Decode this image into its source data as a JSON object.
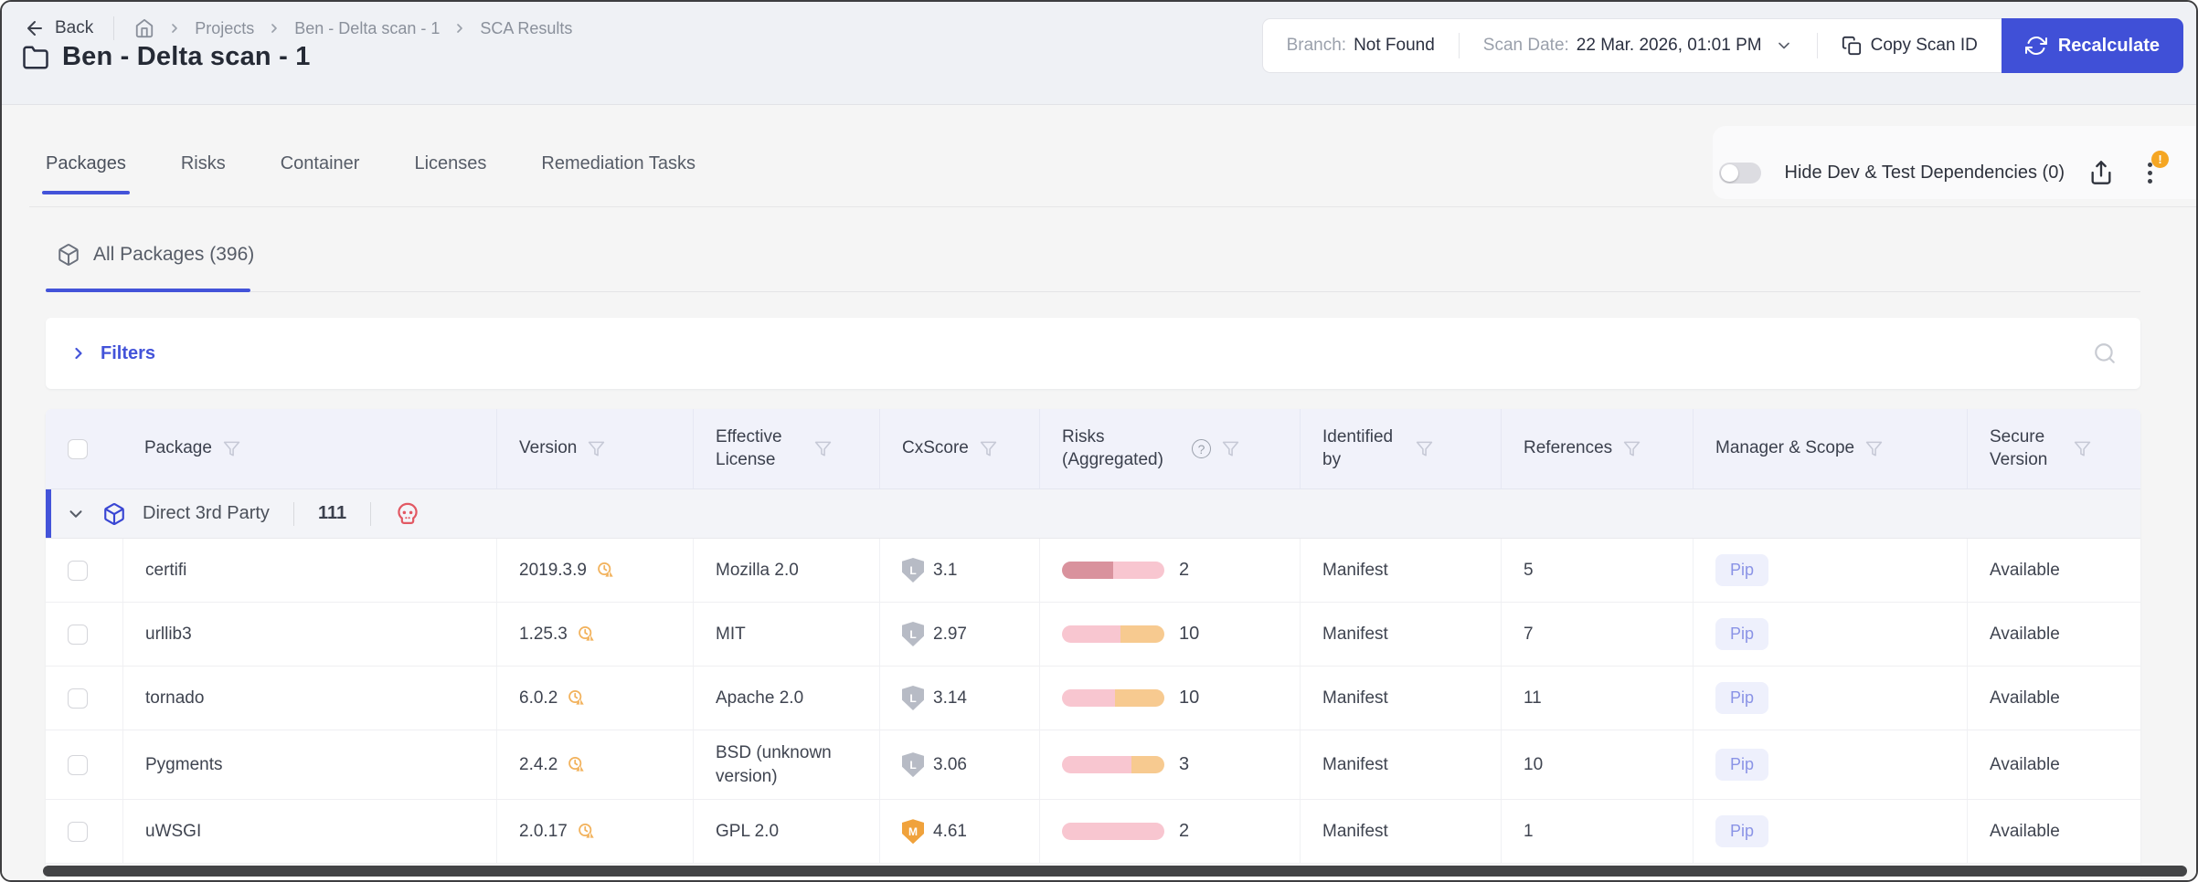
{
  "header": {
    "back_label": "Back",
    "breadcrumb": [
      "Projects",
      "Ben - Delta scan - 1",
      "SCA Results"
    ],
    "title": "Ben - Delta scan - 1",
    "branch_label": "Branch:",
    "branch_value": "Not Found",
    "scan_date_label": "Scan Date:",
    "scan_date_value": "22 Mar. 2026, 01:01 PM",
    "copy_scan_id_label": "Copy Scan ID",
    "recalculate_label": "Recalculate"
  },
  "tabs": [
    {
      "label": "Packages"
    },
    {
      "label": "Risks"
    },
    {
      "label": "Container"
    },
    {
      "label": "Licenses"
    },
    {
      "label": "Remediation Tasks"
    }
  ],
  "toolbar": {
    "hide_dev_label": "Hide Dev & Test Dependencies (0)",
    "menu_badge": "!"
  },
  "subtabs": {
    "all_packages": "All Packages (396)"
  },
  "filters": {
    "label": "Filters"
  },
  "table": {
    "columns": [
      "Package",
      "Version",
      "Effective License",
      "CxScore",
      "Risks (Aggregated)",
      "Identified by",
      "References",
      "Manager & Scope",
      "Secure Version"
    ],
    "group": {
      "name": "Direct 3rd Party",
      "count": "111"
    },
    "score_colors": {
      "low": "#b7bbc5",
      "medium": "#f0a23c"
    },
    "rows": [
      {
        "package": "certifi",
        "version": "2019.3.9",
        "license": "Mozilla 2.0",
        "score": "3.1",
        "score_letter": "L",
        "score_level": "low",
        "risks_count": "2",
        "risk_segments": [
          {
            "color": "#d9929d",
            "pct": 50
          },
          {
            "color": "#f8c6d0",
            "pct": 50
          }
        ],
        "identified_by": "Manifest",
        "references": "5",
        "manager": "Pip",
        "secure": "Available"
      },
      {
        "package": "urllib3",
        "version": "1.25.3",
        "license": "MIT",
        "score": "2.97",
        "score_letter": "L",
        "score_level": "low",
        "risks_count": "10",
        "risk_segments": [
          {
            "color": "#f8c6d0",
            "pct": 57
          },
          {
            "color": "#f7ca90",
            "pct": 43
          }
        ],
        "identified_by": "Manifest",
        "references": "7",
        "manager": "Pip",
        "secure": "Available"
      },
      {
        "package": "tornado",
        "version": "6.0.2",
        "license": "Apache 2.0",
        "score": "3.14",
        "score_letter": "L",
        "score_level": "low",
        "risks_count": "10",
        "risk_segments": [
          {
            "color": "#f8c6d0",
            "pct": 52
          },
          {
            "color": "#f7ca90",
            "pct": 48
          }
        ],
        "identified_by": "Manifest",
        "references": "11",
        "manager": "Pip",
        "secure": "Available"
      },
      {
        "package": "Pygments",
        "version": "2.4.2",
        "license": "BSD (unknown version)",
        "score": "3.06",
        "score_letter": "L",
        "score_level": "low",
        "risks_count": "3",
        "risk_segments": [
          {
            "color": "#f8c6d0",
            "pct": 68
          },
          {
            "color": "#f7ca90",
            "pct": 32
          }
        ],
        "identified_by": "Manifest",
        "references": "10",
        "manager": "Pip",
        "secure": "Available"
      },
      {
        "package": "uWSGI",
        "version": "2.0.17",
        "license": "GPL 2.0",
        "score": "4.61",
        "score_letter": "M",
        "score_level": "medium",
        "risks_count": "2",
        "risk_segments": [
          {
            "color": "#f8c6d0",
            "pct": 100
          }
        ],
        "identified_by": "Manifest",
        "references": "1",
        "manager": "Pip",
        "secure": "Available"
      }
    ]
  },
  "colors": {
    "accent": "#4353d9",
    "warning": "#f5a623",
    "malicious": "#e25863"
  }
}
